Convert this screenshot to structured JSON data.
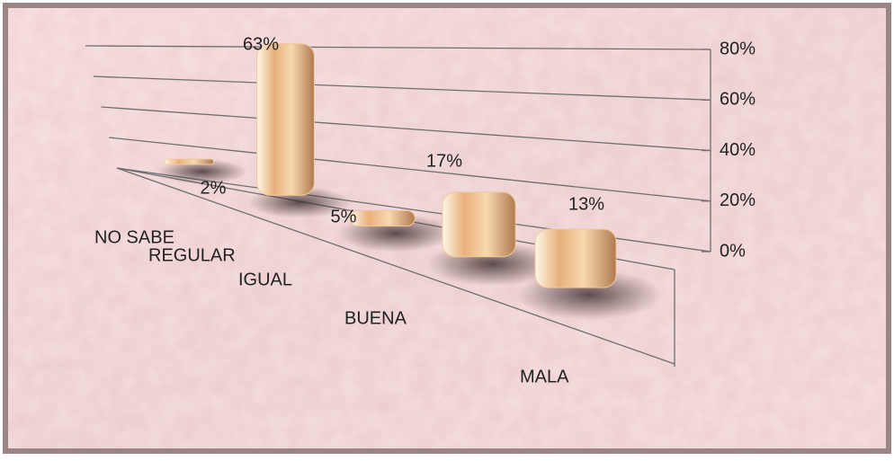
{
  "chart_data": {
    "type": "bar",
    "categories": [
      "NO SABE",
      "REGULAR",
      "IGUAL",
      "BUENA",
      "MALA"
    ],
    "values": [
      2,
      63,
      5,
      17,
      13
    ],
    "value_labels": [
      "2%",
      "63%",
      "5%",
      "17%",
      "13%"
    ],
    "color": "#f0c89a",
    "ylim": [
      0,
      80
    ],
    "yticks": [
      {
        "value": 0,
        "label": "0%"
      },
      {
        "value": 20,
        "label": "20%"
      },
      {
        "value": 40,
        "label": "40%"
      },
      {
        "value": 60,
        "label": "60%"
      },
      {
        "value": 80,
        "label": "80%"
      }
    ],
    "grid": true
  }
}
